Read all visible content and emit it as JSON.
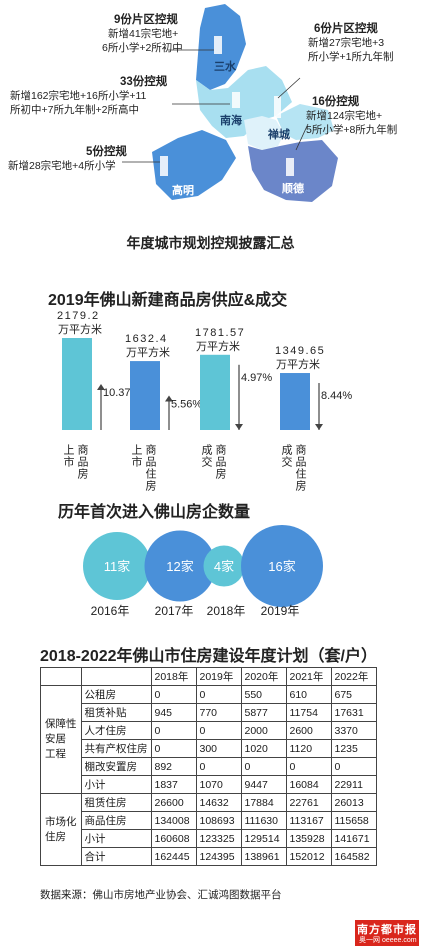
{
  "map": {
    "caption": "年度城市规划控规披露汇总",
    "districts": [
      {
        "name": "三水",
        "callout_title": "9份片区控规",
        "callout_lines": [
          "新增41宗宅地+",
          "6所小学+2所初中"
        ]
      },
      {
        "name": "南海",
        "callout_title": "33份控规",
        "callout_lines": [
          "新增162宗宅地+16所小学+11",
          "所初中+7所九年制+2所高中"
        ]
      },
      {
        "name": "高明",
        "callout_title": "5份控规",
        "callout_lines": [
          "新增28宗宅地+4所小学"
        ]
      },
      {
        "name": "禅城",
        "callout_title": "6份片区控规",
        "callout_lines": [
          "新增27宗宅地+3",
          "所小学+1所九年制"
        ]
      },
      {
        "name": "顺德",
        "callout_title": "16份控规",
        "callout_lines": [
          "新增124宗宅地+",
          "5所小学+8所九年制"
        ]
      }
    ]
  },
  "chart_data": [
    {
      "type": "bar",
      "title": "2019年佛山新建商品房供应&成交",
      "categories": [
        "上市 商品房",
        "上市 商品住房",
        "成交 商品房",
        "成交 商品住房"
      ],
      "values": [
        2179.2,
        1632.4,
        1781.57,
        1349.65
      ],
      "value_labels": [
        "2179.2",
        "1632.4",
        "1781.57",
        "1349.65"
      ],
      "unit": "万平方米",
      "changes": [
        "10.37%",
        "5.56%",
        "4.97%",
        "8.44%"
      ],
      "change_direction": [
        "up",
        "up",
        "down",
        "down"
      ],
      "colors": [
        "#5ec5d6",
        "#4a90d9",
        "#5ec5d6",
        "#4a90d9"
      ]
    },
    {
      "type": "bar",
      "title": "历年首次进入佛山房企数量",
      "categories": [
        "2016年",
        "2017年",
        "2018年",
        "2019年"
      ],
      "values": [
        11,
        12,
        4,
        16
      ],
      "value_labels": [
        "11家",
        "12家",
        "4家",
        "16家"
      ],
      "colors": [
        "#5ec5d6",
        "#4a90d9",
        "#5ec5d6",
        "#4a90d9"
      ]
    },
    {
      "type": "table",
      "title": "2018-2022年佛山市住房建设年度计划（套/户）",
      "columns": [
        "2018年",
        "2019年",
        "2020年",
        "2021年",
        "2022年"
      ],
      "groups": [
        {
          "name": "保障性安居工程",
          "rows": [
            {
              "label": "公租房",
              "values": [
                "0",
                "0",
                "550",
                "610",
                "675"
              ]
            },
            {
              "label": "租赁补贴",
              "values": [
                "945",
                "770",
                "5877",
                "11754",
                "17631"
              ]
            },
            {
              "label": "人才住房",
              "values": [
                "0",
                "0",
                "2000",
                "2600",
                "3370"
              ]
            },
            {
              "label": "共有产权住房",
              "values": [
                "0",
                "300",
                "1020",
                "1120",
                "1235"
              ]
            },
            {
              "label": "棚改安置房",
              "values": [
                "892",
                "0",
                "0",
                "0",
                "0"
              ]
            },
            {
              "label": "小计",
              "values": [
                "1837",
                "1070",
                "9447",
                "16084",
                "22911"
              ]
            }
          ]
        },
        {
          "name": "市场化住房",
          "rows": [
            {
              "label": "租赁住房",
              "values": [
                "26600",
                "14632",
                "17884",
                "22761",
                "26013"
              ]
            },
            {
              "label": "商品住房",
              "values": [
                "134008",
                "108693",
                "111630",
                "113167",
                "115658"
              ]
            },
            {
              "label": "小计",
              "values": [
                "160608",
                "123325",
                "129514",
                "135928",
                "141671"
              ]
            },
            {
              "label": "合计",
              "values": [
                "162445",
                "124395",
                "138961",
                "152012",
                "164582"
              ]
            }
          ]
        }
      ]
    }
  ],
  "table_group_labels": [
    [
      "保障性",
      "安居",
      "工程"
    ],
    [
      "市场化",
      "住房"
    ]
  ],
  "source": "数据来源：佛山市房地产业协会、汇诚鸿图数据平台",
  "logo": {
    "name": "南方都市报",
    "sub": "奥一网 oeeee.com"
  }
}
